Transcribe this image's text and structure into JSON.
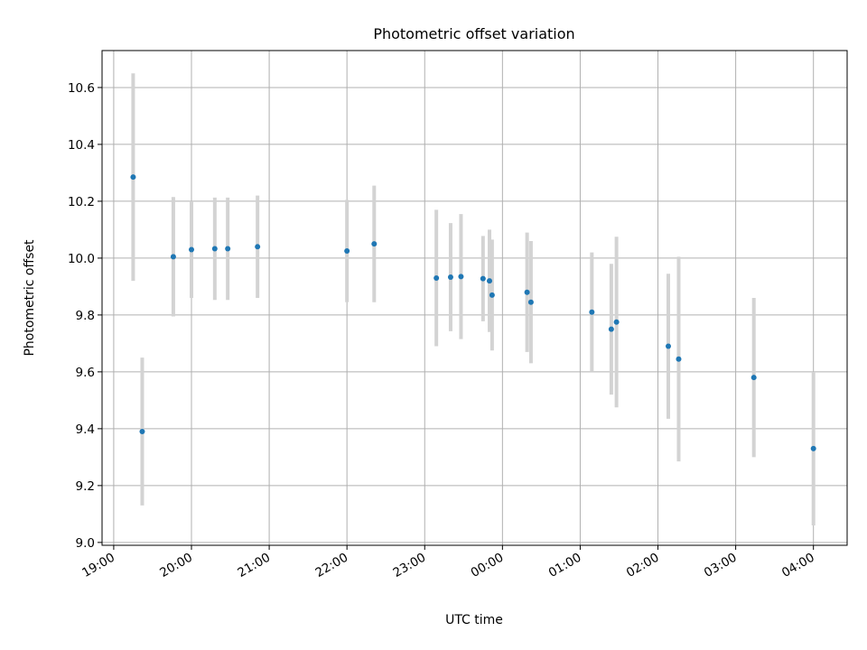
{
  "chart_data": {
    "type": "scatter",
    "title": "Photometric offset variation",
    "xlabel": "UTC time",
    "ylabel": "Photometric offset",
    "x_axis_type": "time",
    "x_tick_labels": [
      "19:00",
      "20:00",
      "21:00",
      "22:00",
      "23:00",
      "00:00",
      "01:00",
      "02:00",
      "03:00",
      "04:00"
    ],
    "x_ticks": [
      "19:00",
      "20:00",
      "21:00",
      "22:00",
      "23:00",
      "24:00",
      "25:00",
      "26:00",
      "27:00",
      "28:00"
    ],
    "xlim": [
      "18:51",
      "28:26"
    ],
    "y_ticks": [
      9.0,
      9.2,
      9.4,
      9.6,
      9.8,
      10.0,
      10.2,
      10.4,
      10.6
    ],
    "y_tick_labels": [
      "9.0",
      "9.2",
      "9.4",
      "9.6",
      "9.8",
      "10.0",
      "10.2",
      "10.4",
      "10.6"
    ],
    "ylim": [
      8.99,
      10.73
    ],
    "grid": true,
    "colors": {
      "point": "#1f77b4",
      "error_bar": "#d3d3d3",
      "grid": "#b0b0b0"
    },
    "series": [
      {
        "points": [
          {
            "x": "19:15",
            "y": 10.285,
            "err": 0.365
          },
          {
            "x": "19:22",
            "y": 9.39,
            "err": 0.26
          },
          {
            "x": "19:46",
            "y": 10.005,
            "err": 0.21
          },
          {
            "x": "20:00",
            "y": 10.03,
            "err": 0.17
          },
          {
            "x": "20:18",
            "y": 10.033,
            "err": 0.18
          },
          {
            "x": "20:28",
            "y": 10.033,
            "err": 0.18
          },
          {
            "x": "20:51",
            "y": 10.04,
            "err": 0.18
          },
          {
            "x": "22:00",
            "y": 10.025,
            "err": 0.18
          },
          {
            "x": "22:21",
            "y": 10.05,
            "err": 0.205
          },
          {
            "x": "23:09",
            "y": 9.93,
            "err": 0.24
          },
          {
            "x": "23:20",
            "y": 9.933,
            "err": 0.19
          },
          {
            "x": "23:28",
            "y": 9.935,
            "err": 0.22
          },
          {
            "x": "23:45",
            "y": 9.928,
            "err": 0.15
          },
          {
            "x": "23:50",
            "y": 9.92,
            "err": 0.18
          },
          {
            "x": "23:52",
            "y": 9.87,
            "err": 0.195
          },
          {
            "x": "24:19",
            "y": 9.88,
            "err": 0.21
          },
          {
            "x": "24:22",
            "y": 9.845,
            "err": 0.215
          },
          {
            "x": "25:09",
            "y": 9.81,
            "err": 0.21
          },
          {
            "x": "25:24",
            "y": 9.75,
            "err": 0.23
          },
          {
            "x": "25:28",
            "y": 9.775,
            "err": 0.3
          },
          {
            "x": "26:08",
            "y": 9.69,
            "err": 0.255
          },
          {
            "x": "26:16",
            "y": 9.645,
            "err": 0.36
          },
          {
            "x": "27:14",
            "y": 9.58,
            "err": 0.28
          },
          {
            "x": "28:00",
            "y": 9.33,
            "err": 0.27
          }
        ]
      }
    ]
  }
}
